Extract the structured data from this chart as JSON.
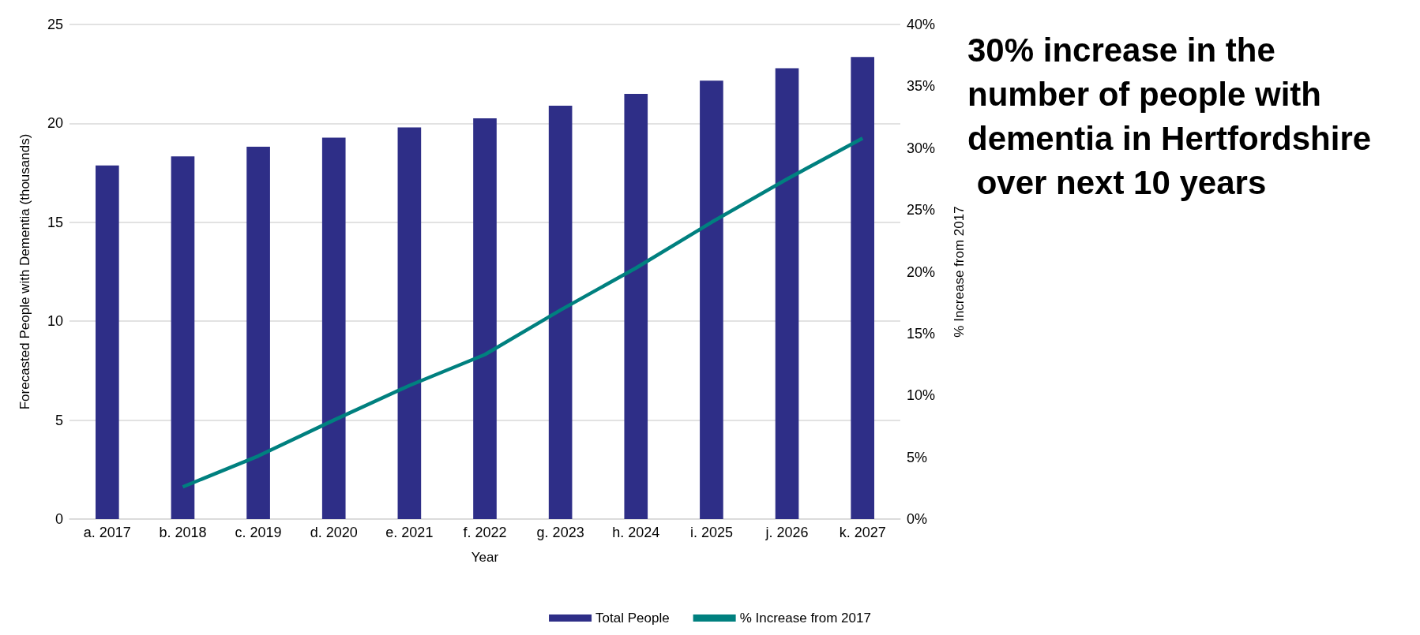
{
  "chart_data": {
    "type": "bar",
    "title": "30% increase in the number of people with dementia in Hertfordshire over next 10 years",
    "xlabel": "Year",
    "ylabel": "Forecasted People with Dementia (thousands)",
    "y2label": "% Increase from 2017",
    "categories": [
      "a. 2017",
      "b. 2018",
      "c. 2019",
      "d. 2020",
      "e. 2021",
      "f. 2022",
      "g. 2023",
      "h. 2024",
      "i. 2025",
      "j. 2026",
      "k. 2027"
    ],
    "series": [
      {
        "name": "Total People",
        "color": "#2e2e87",
        "values": [
          17.87,
          18.33,
          18.82,
          19.28,
          19.8,
          20.26,
          20.89,
          21.49,
          22.16,
          22.79,
          23.36
        ]
      },
      {
        "name": "% Increase from 2017",
        "type": "line",
        "axis": "y2",
        "color": "#00807f",
        "values": [
          null,
          2.6,
          5.1,
          8.0,
          10.8,
          13.3,
          16.9,
          20.3,
          24.0,
          27.5,
          30.8
        ]
      }
    ],
    "ylim": [
      0,
      25
    ],
    "yticks": [
      0,
      5,
      10,
      15,
      20,
      25
    ],
    "y2lim": [
      0,
      40
    ],
    "y2ticks": [
      {
        "value": 0,
        "label": "0%"
      },
      {
        "value": 5,
        "label": "5%"
      },
      {
        "value": 10,
        "label": "10%"
      },
      {
        "value": 15,
        "label": "15%"
      },
      {
        "value": 20,
        "label": "20%"
      },
      {
        "value": 25,
        "label": "25%"
      },
      {
        "value": 30,
        "label": "30%"
      },
      {
        "value": 35,
        "label": "35%"
      },
      {
        "value": 40,
        "label": "40%"
      }
    ],
    "grid": "y",
    "legend": "bottom",
    "marker": "none"
  }
}
